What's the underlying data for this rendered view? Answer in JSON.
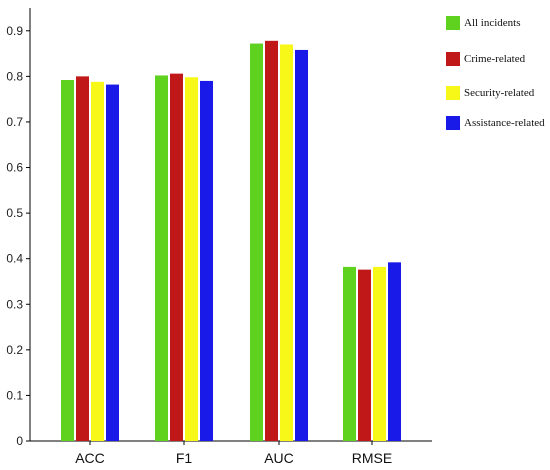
{
  "chart_data": {
    "type": "bar",
    "title": "",
    "xlabel": "",
    "ylabel": "",
    "categories": [
      "ACC",
      "F1",
      "AUC",
      "RMSE"
    ],
    "ylim": [
      0,
      0.95
    ],
    "yticks": [
      "0",
      "0.1",
      "0.2",
      "0.3",
      "0.4",
      "0.5",
      "0.6",
      "0.7",
      "0.8",
      "0.9"
    ],
    "grid": false,
    "legend_position": "top-right",
    "series": [
      {
        "name": "All incidents",
        "color": "#5fd11f",
        "values": [
          0.792,
          0.802,
          0.872,
          0.382
        ]
      },
      {
        "name": "Crime-related",
        "color": "#c01818",
        "values": [
          0.8,
          0.806,
          0.878,
          0.376
        ]
      },
      {
        "name": "Security-related",
        "color": "#f7f718",
        "values": [
          0.788,
          0.798,
          0.87,
          0.382
        ]
      },
      {
        "name": "Assistance-related",
        "color": "#1a1ae8",
        "values": [
          0.782,
          0.79,
          0.858,
          0.392
        ]
      }
    ]
  }
}
